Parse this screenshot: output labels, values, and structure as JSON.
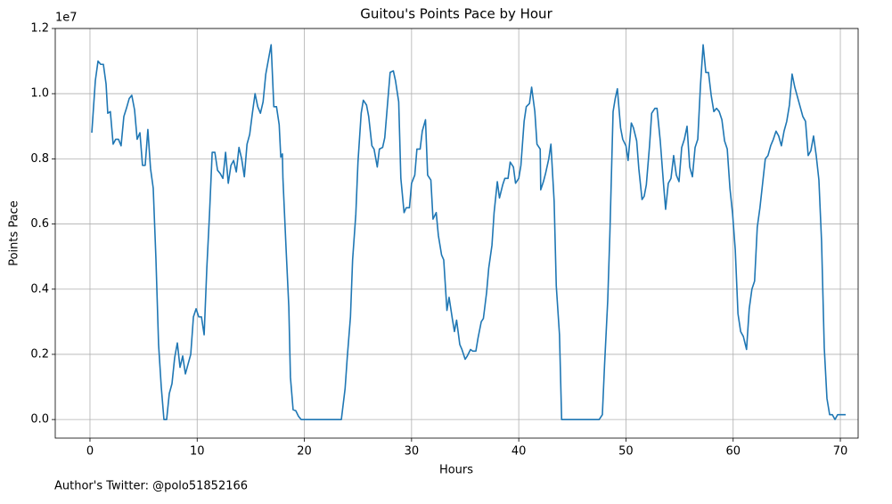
{
  "chart_data": {
    "type": "line",
    "title": "Guitou's Points Pace by Hour",
    "x_label": "Hours",
    "y_label": "Points Pace",
    "y_offset_label": "1e7",
    "footer": "Author's Twitter: @polo51852166",
    "grid": true,
    "xlim": [
      -3.24,
      71.66
    ],
    "xticks": [
      0,
      10,
      20,
      30,
      40,
      50,
      60,
      70
    ],
    "ylim": [
      -0.057,
      1.2
    ],
    "yticks": [
      {
        "value": 0,
        "label": "0.0"
      },
      0.2,
      0.4,
      0.6,
      0.8,
      {
        "value": 1,
        "label": "1.0"
      },
      1.2
    ],
    "series": [
      {
        "color": "#1f77b4",
        "x": [
          0.17,
          0.5,
          0.75,
          1.0,
          1.25,
          1.5,
          1.66,
          1.9,
          2.16,
          2.4,
          2.66,
          2.9,
          3.16,
          3.4,
          3.66,
          3.9,
          4.16,
          4.4,
          4.66,
          4.9,
          5.15,
          5.4,
          5.65,
          5.9,
          6.15,
          6.4,
          6.65,
          6.9,
          7.15,
          7.4,
          7.65,
          7.9,
          8.15,
          8.4,
          8.65,
          8.9,
          9.15,
          9.4,
          9.65,
          9.9,
          10.15,
          10.4,
          10.65,
          10.9,
          11.15,
          11.4,
          11.65,
          11.9,
          12.15,
          12.4,
          12.65,
          12.9,
          13.15,
          13.4,
          13.65,
          13.9,
          14.15,
          14.4,
          14.65,
          14.9,
          15.15,
          15.4,
          15.65,
          15.9,
          16.15,
          16.4,
          16.65,
          16.9,
          17.15,
          17.4,
          17.65,
          17.8,
          17.95,
          18.0,
          18.3,
          18.55,
          18.7,
          18.95,
          19.2,
          19.45,
          19.7,
          23.45,
          23.8,
          24.0,
          24.3,
          24.5,
          24.8,
          25.0,
          25.3,
          25.5,
          25.8,
          26.0,
          26.3,
          26.5,
          26.8,
          27.0,
          27.3,
          27.5,
          27.8,
          28.0,
          28.3,
          28.5,
          28.8,
          29.0,
          29.3,
          29.5,
          29.8,
          30.0,
          30.3,
          30.5,
          30.8,
          31.0,
          31.3,
          31.5,
          31.8,
          32.0,
          32.3,
          32.5,
          32.8,
          33.0,
          33.3,
          33.5,
          33.8,
          34.0,
          34.2,
          34.5,
          34.7,
          35.0,
          35.2,
          35.5,
          35.7,
          36.0,
          36.2,
          36.5,
          36.7,
          37.0,
          37.2,
          37.5,
          37.7,
          38.0,
          38.2,
          38.5,
          38.7,
          39.0,
          39.2,
          39.5,
          39.7,
          40.0,
          40.2,
          40.5,
          40.7,
          41.0,
          41.2,
          41.5,
          41.7,
          42.0,
          42.05,
          42.3,
          42.5,
          42.8,
          43.0,
          43.3,
          43.5,
          43.8,
          44.0,
          47.5,
          47.8,
          48.0,
          48.3,
          48.5,
          48.8,
          49.0,
          49.2,
          49.5,
          49.7,
          50.0,
          50.2,
          50.5,
          50.7,
          51.0,
          51.2,
          51.5,
          51.7,
          51.9,
          52.2,
          52.4,
          52.7,
          52.9,
          53.2,
          53.5,
          53.7,
          53.95,
          54.2,
          54.45,
          54.7,
          54.95,
          55.2,
          55.45,
          55.7,
          55.95,
          56.2,
          56.45,
          56.7,
          56.95,
          57.2,
          57.45,
          57.7,
          57.95,
          58.2,
          58.45,
          58.7,
          58.95,
          59.2,
          59.45,
          59.7,
          59.95,
          60.2,
          60.45,
          60.7,
          60.95,
          61.25,
          61.5,
          61.75,
          62.0,
          62.25,
          62.5,
          62.75,
          63.0,
          63.25,
          63.5,
          63.75,
          64.0,
          64.25,
          64.5,
          64.75,
          65.0,
          65.25,
          65.5,
          65.75,
          66.0,
          66.25,
          66.5,
          66.75,
          67.0,
          67.25,
          67.5,
          67.75,
          68.0,
          68.25,
          68.5,
          68.75,
          69.0,
          69.25,
          69.5,
          69.75,
          70.5
        ],
        "values": [
          0.88,
          1.04,
          1.1,
          1.09,
          1.09,
          1.03,
          0.94,
          0.945,
          0.845,
          0.86,
          0.86,
          0.84,
          0.93,
          0.955,
          0.985,
          0.995,
          0.95,
          0.86,
          0.88,
          0.78,
          0.78,
          0.89,
          0.77,
          0.71,
          0.495,
          0.23,
          0.1,
          0,
          0,
          0.08,
          0.11,
          0.19,
          0.235,
          0.16,
          0.195,
          0.14,
          0.17,
          0.2,
          0.315,
          0.34,
          0.315,
          0.315,
          0.26,
          0.465,
          0.63,
          0.82,
          0.82,
          0.765,
          0.755,
          0.74,
          0.82,
          0.725,
          0.78,
          0.795,
          0.76,
          0.835,
          0.8,
          0.745,
          0.845,
          0.875,
          0.94,
          1.0,
          0.96,
          0.94,
          0.975,
          1.06,
          1.105,
          1.15,
          0.96,
          0.96,
          0.905,
          0.805,
          0.815,
          0.74,
          0.52,
          0.345,
          0.13,
          0.03,
          0.027,
          0.01,
          0,
          0,
          0.095,
          0.19,
          0.315,
          0.49,
          0.63,
          0.79,
          0.94,
          0.98,
          0.965,
          0.93,
          0.84,
          0.83,
          0.775,
          0.83,
          0.835,
          0.865,
          0.985,
          1.065,
          1.07,
          1.04,
          0.975,
          0.74,
          0.635,
          0.65,
          0.65,
          0.725,
          0.75,
          0.83,
          0.83,
          0.885,
          0.92,
          0.75,
          0.735,
          0.615,
          0.635,
          0.565,
          0.505,
          0.49,
          0.335,
          0.375,
          0.31,
          0.27,
          0.305,
          0.23,
          0.215,
          0.185,
          0.195,
          0.215,
          0.21,
          0.21,
          0.25,
          0.3,
          0.31,
          0.39,
          0.465,
          0.535,
          0.635,
          0.73,
          0.68,
          0.72,
          0.74,
          0.74,
          0.79,
          0.775,
          0.725,
          0.74,
          0.78,
          0.915,
          0.96,
          0.97,
          1.02,
          0.945,
          0.845,
          0.83,
          0.705,
          0.73,
          0.755,
          0.8,
          0.845,
          0.67,
          0.41,
          0.26,
          0,
          0,
          0.015,
          0.165,
          0.365,
          0.57,
          0.945,
          0.985,
          1.015,
          0.895,
          0.86,
          0.84,
          0.795,
          0.91,
          0.895,
          0.855,
          0.77,
          0.675,
          0.685,
          0.72,
          0.84,
          0.94,
          0.955,
          0.955,
          0.855,
          0.725,
          0.645,
          0.725,
          0.74,
          0.81,
          0.75,
          0.73,
          0.835,
          0.86,
          0.9,
          0.775,
          0.745,
          0.835,
          0.86,
          1.025,
          1.15,
          1.065,
          1.065,
          0.995,
          0.945,
          0.955,
          0.945,
          0.92,
          0.855,
          0.83,
          0.71,
          0.63,
          0.52,
          0.325,
          0.27,
          0.255,
          0.215,
          0.34,
          0.4,
          0.425,
          0.59,
          0.65,
          0.725,
          0.8,
          0.81,
          0.84,
          0.86,
          0.885,
          0.87,
          0.84,
          0.885,
          0.915,
          0.965,
          1.06,
          1.02,
          0.99,
          0.96,
          0.93,
          0.915,
          0.81,
          0.825,
          0.87,
          0.81,
          0.735,
          0.545,
          0.22,
          0.065,
          0.015,
          0.015,
          0,
          0.015,
          0.015
        ]
      }
    ]
  }
}
